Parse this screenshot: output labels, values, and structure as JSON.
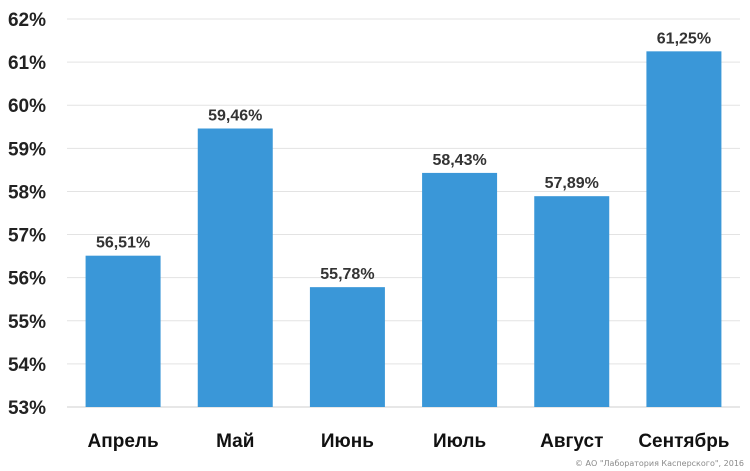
{
  "chart_data": {
    "type": "bar",
    "categories": [
      "Апрель",
      "Май",
      "Июнь",
      "Июль",
      "Август",
      "Сентябрь"
    ],
    "values": [
      56.51,
      59.46,
      55.78,
      58.43,
      57.89,
      61.25
    ],
    "data_labels": [
      "56,51%",
      "59,46%",
      "55,78%",
      "58,43%",
      "57,89%",
      "61,25%"
    ],
    "ylim": [
      53,
      62
    ],
    "yticks": [
      53,
      54,
      55,
      56,
      57,
      58,
      59,
      60,
      61,
      62
    ],
    "ytick_labels": [
      "53%",
      "54%",
      "55%",
      "56%",
      "57%",
      "58%",
      "59%",
      "60%",
      "61%",
      "62%"
    ],
    "grid": true,
    "bar_color": "#3a97d8"
  },
  "copyright": "© АО \"Лаборатория Касперского\", 2016"
}
